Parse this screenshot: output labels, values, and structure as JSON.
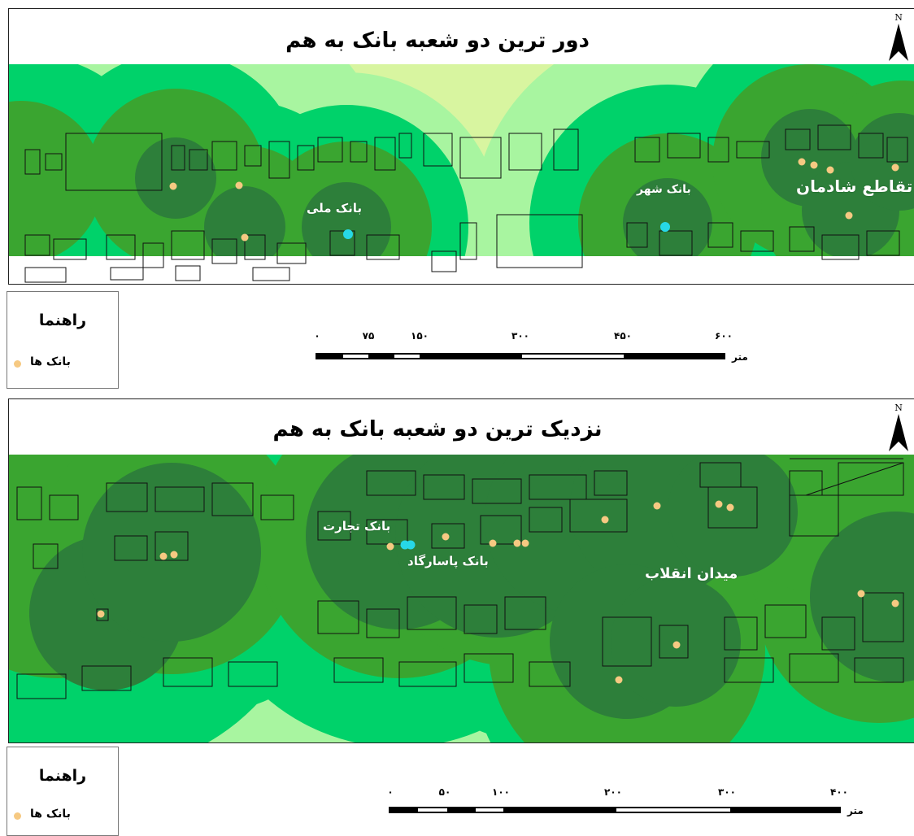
{
  "colors": {
    "ring1": "#2d7f3a",
    "ring2": "#3aa530",
    "ring3": "#00d26a",
    "ring4": "#a8f5a0",
    "background": "#d8f5a0",
    "bank_dot": "#f6c982",
    "highlight_bank": "#27d8e6"
  },
  "icons": [
    "north-arrow-icon",
    "bank-dot-icon"
  ],
  "map1": {
    "title": "دور ترین دو شعبه بانک به هم",
    "north_label": "N",
    "labels": {
      "bank_melli": "بانک ملی",
      "bank_shahr": "بانک شهر",
      "intersection": "تقاطع شادمان"
    },
    "legend": {
      "title": "راهنما",
      "item": "بانک ها"
    },
    "scale": {
      "ticks": [
        "۰",
        "۷۵",
        "۱۵۰",
        "۳۰۰",
        "۴۵۰",
        "۶۰۰"
      ],
      "unit": "متر"
    }
  },
  "map2": {
    "title": "نزدیک ترین دو شعبه بانک به هم",
    "north_label": "N",
    "labels": {
      "bank_tejarat": "بانک تجارت",
      "bank_pasargad": "بانک پاسارگاد",
      "square": "میدان انقلاب"
    },
    "legend": {
      "title": "راهنما",
      "item": "بانک ها"
    },
    "scale": {
      "ticks": [
        "۰",
        "۵۰",
        "۱۰۰",
        "۲۰۰",
        "۳۰۰",
        "۴۰۰"
      ],
      "unit": "متر"
    }
  }
}
